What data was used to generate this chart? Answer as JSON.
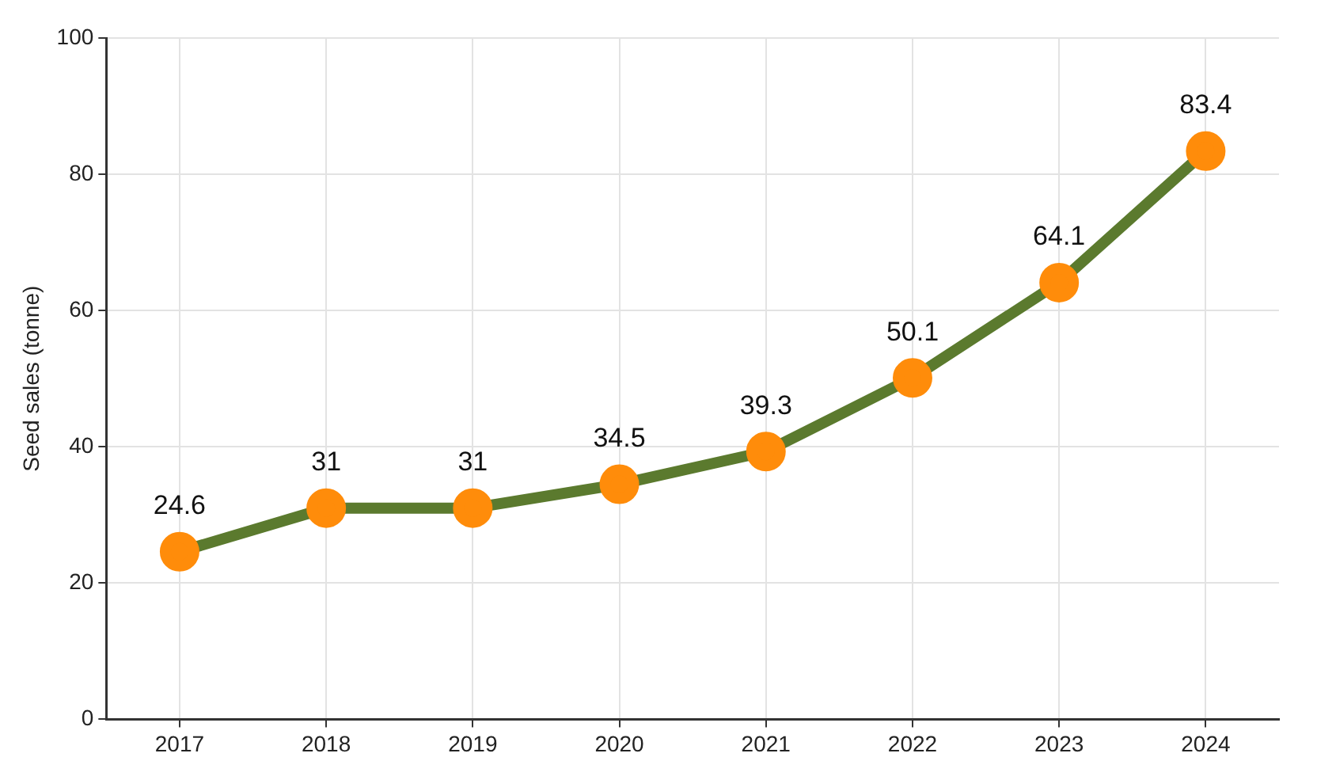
{
  "chart_data": {
    "type": "line",
    "ylabel": "Seed sales (tonne)",
    "categories": [
      "2017",
      "2018",
      "2019",
      "2020",
      "2021",
      "2022",
      "2023",
      "2024"
    ],
    "series": [
      {
        "color": "#5b7a2e",
        "values": [
          24.6,
          31,
          31,
          34.5,
          39.3,
          50.1,
          64.1,
          83.4
        ]
      }
    ],
    "ylim": [
      0,
      100
    ],
    "yticks": [
      0,
      20,
      40,
      60,
      80,
      100
    ],
    "grid": true,
    "marker": "circle",
    "line_style": "solid",
    "data_labels": true,
    "legend": false
  }
}
